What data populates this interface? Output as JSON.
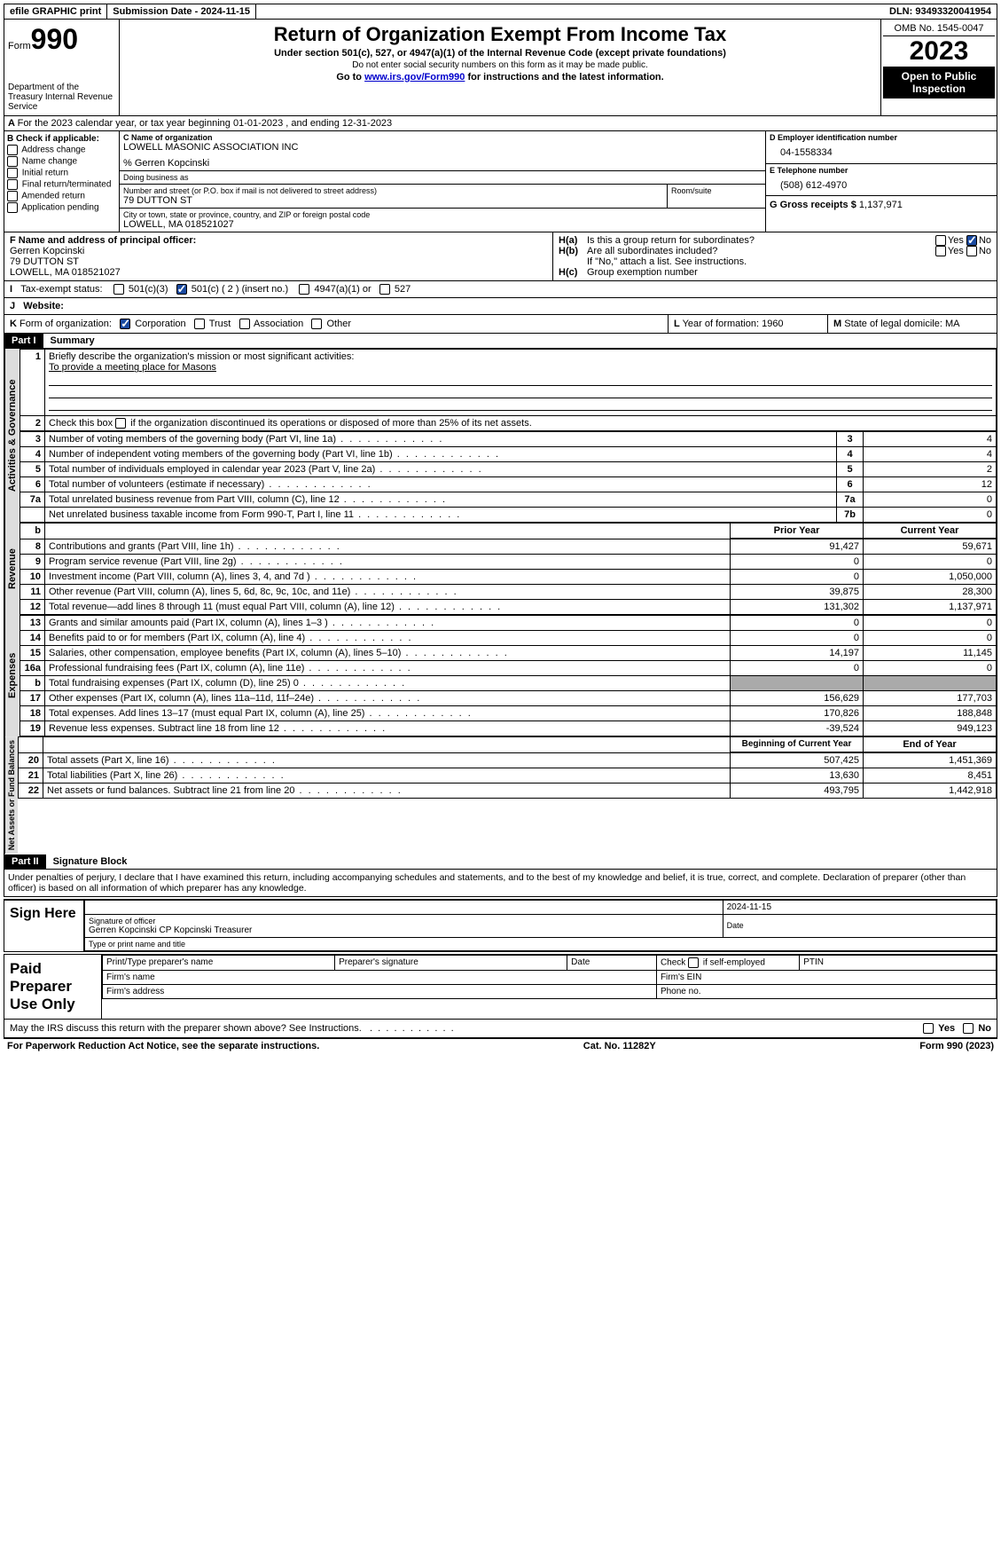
{
  "topbar": {
    "efile": "efile GRAPHIC print",
    "submission": "Submission Date - 2024-11-15",
    "dln": "DLN: 93493320041954"
  },
  "header": {
    "form_word": "Form",
    "form_num": "990",
    "dept": "Department of the Treasury\nInternal Revenue Service",
    "title": "Return of Organization Exempt From Income Tax",
    "sub1": "Under section 501(c), 527, or 4947(a)(1) of the Internal Revenue Code (except private foundations)",
    "sub2": "Do not enter social security numbers on this form as it may be made public.",
    "sub3_pre": "Go to ",
    "sub3_link": "www.irs.gov/Form990",
    "sub3_post": " for instructions and the latest information.",
    "omb": "OMB No. 1545-0047",
    "year": "2023",
    "open": "Open to Public Inspection"
  },
  "line_a": "For the 2023 calendar year, or tax year beginning 01-01-2023   , and ending 12-31-2023",
  "box_b": {
    "hdr": "B Check if applicable:",
    "opts": [
      "Address change",
      "Name change",
      "Initial return",
      "Final return/terminated",
      "Amended return",
      "Application pending"
    ]
  },
  "box_c": {
    "name_lbl": "C Name of organization",
    "name": "LOWELL MASONIC ASSOCIATION INC",
    "care_of": "% Gerren Kopcinski",
    "dba_lbl": "Doing business as",
    "dba": "",
    "street_lbl": "Number and street (or P.O. box if mail is not delivered to street address)",
    "street": "79 DUTTON ST",
    "room_lbl": "Room/suite",
    "city_lbl": "City or town, state or province, country, and ZIP or foreign postal code",
    "city": "LOWELL, MA  018521027"
  },
  "box_d": {
    "lbl": "D Employer identification number",
    "val": "04-1558334"
  },
  "box_e": {
    "lbl": "E Telephone number",
    "val": "(508) 612-4970"
  },
  "box_g": {
    "lbl": "G Gross receipts $",
    "val": "1,137,971"
  },
  "box_f": {
    "lbl": "F  Name and address of principal officer:",
    "name": "Gerren Kopcinski",
    "addr1": "79 DUTTON ST",
    "addr2": "LOWELL, MA  018521027"
  },
  "box_h": {
    "a": "Is this a group return for subordinates?",
    "b": "Are all subordinates included?",
    "note": "If \"No,\" attach a list. See instructions.",
    "c": "Group exemption number"
  },
  "box_i": {
    "lbl": "Tax-exempt status:",
    "o1": "501(c)(3)",
    "o2": "501(c) ( 2 ) (insert no.)",
    "o3": "4947(a)(1) or",
    "o4": "527"
  },
  "box_j": {
    "lbl": "Website:",
    "val": ""
  },
  "box_k": {
    "lbl": "Form of organization:",
    "o1": "Corporation",
    "o2": "Trust",
    "o3": "Association",
    "o4": "Other"
  },
  "box_l": {
    "lbl": "Year of formation:",
    "val": "1960"
  },
  "box_m": {
    "lbl": "State of legal domicile:",
    "val": "MA"
  },
  "part1": {
    "hdr": "Part I",
    "title": "Summary"
  },
  "summary": {
    "l1": "Briefly describe the organization's mission or most significant activities:",
    "l1_val": "To provide a meeting place for Masons",
    "l2": "Check this box        if the organization discontinued its operations or disposed of more than 25% of its net assets.",
    "rows_ag": [
      {
        "n": "3",
        "t": "Number of voting members of the governing body (Part VI, line 1a)",
        "box": "3",
        "v": "4"
      },
      {
        "n": "4",
        "t": "Number of independent voting members of the governing body (Part VI, line 1b)",
        "box": "4",
        "v": "4"
      },
      {
        "n": "5",
        "t": "Total number of individuals employed in calendar year 2023 (Part V, line 2a)",
        "box": "5",
        "v": "2"
      },
      {
        "n": "6",
        "t": "Total number of volunteers (estimate if necessary)",
        "box": "6",
        "v": "12"
      },
      {
        "n": "7a",
        "t": "Total unrelated business revenue from Part VIII, column (C), line 12",
        "box": "7a",
        "v": "0"
      },
      {
        "n": "",
        "t": "Net unrelated business taxable income from Form 990-T, Part I, line 11",
        "box": "7b",
        "v": "0"
      }
    ],
    "hdr_prior": "Prior Year",
    "hdr_curr": "Current Year",
    "rows_rev": [
      {
        "n": "8",
        "t": "Contributions and grants (Part VIII, line 1h)",
        "p": "91,427",
        "c": "59,671"
      },
      {
        "n": "9",
        "t": "Program service revenue (Part VIII, line 2g)",
        "p": "0",
        "c": "0"
      },
      {
        "n": "10",
        "t": "Investment income (Part VIII, column (A), lines 3, 4, and 7d )",
        "p": "0",
        "c": "1,050,000"
      },
      {
        "n": "11",
        "t": "Other revenue (Part VIII, column (A), lines 5, 6d, 8c, 9c, 10c, and 11e)",
        "p": "39,875",
        "c": "28,300"
      },
      {
        "n": "12",
        "t": "Total revenue—add lines 8 through 11 (must equal Part VIII, column (A), line 12)",
        "p": "131,302",
        "c": "1,137,971"
      }
    ],
    "rows_exp": [
      {
        "n": "13",
        "t": "Grants and similar amounts paid (Part IX, column (A), lines 1–3 )",
        "p": "0",
        "c": "0"
      },
      {
        "n": "14",
        "t": "Benefits paid to or for members (Part IX, column (A), line 4)",
        "p": "0",
        "c": "0"
      },
      {
        "n": "15",
        "t": "Salaries, other compensation, employee benefits (Part IX, column (A), lines 5–10)",
        "p": "14,197",
        "c": "11,145"
      },
      {
        "n": "16a",
        "t": "Professional fundraising fees (Part IX, column (A), line 11e)",
        "p": "0",
        "c": "0"
      },
      {
        "n": "b",
        "t": "Total fundraising expenses (Part IX, column (D), line 25) 0",
        "p": "shade",
        "c": "shade"
      },
      {
        "n": "17",
        "t": "Other expenses (Part IX, column (A), lines 11a–11d, 11f–24e)",
        "p": "156,629",
        "c": "177,703"
      },
      {
        "n": "18",
        "t": "Total expenses. Add lines 13–17 (must equal Part IX, column (A), line 25)",
        "p": "170,826",
        "c": "188,848"
      },
      {
        "n": "19",
        "t": "Revenue less expenses. Subtract line 18 from line 12",
        "p": "-39,524",
        "c": "949,123"
      }
    ],
    "hdr_begin": "Beginning of Current Year",
    "hdr_end": "End of Year",
    "rows_net": [
      {
        "n": "20",
        "t": "Total assets (Part X, line 16)",
        "p": "507,425",
        "c": "1,451,369"
      },
      {
        "n": "21",
        "t": "Total liabilities (Part X, line 26)",
        "p": "13,630",
        "c": "8,451"
      },
      {
        "n": "22",
        "t": "Net assets or fund balances. Subtract line 21 from line 20",
        "p": "493,795",
        "c": "1,442,918"
      }
    ]
  },
  "part2": {
    "hdr": "Part II",
    "title": "Signature Block"
  },
  "penalty": "Under penalties of perjury, I declare that I have examined this return, including accompanying schedules and statements, and to the best of my knowledge and belief, it is true, correct, and complete. Declaration of preparer (other than officer) is based on all information of which preparer has any knowledge.",
  "sign": {
    "here": "Sign Here",
    "sig_lbl": "Signature of officer",
    "name": "Gerren Kopcinski CP Kopcinski  Treasurer",
    "type_lbl": "Type or print name and title",
    "date_lbl": "Date",
    "date": "2024-11-15"
  },
  "preparer": {
    "hdr": "Paid Preparer Use Only",
    "c1": "Print/Type preparer's name",
    "c2": "Preparer's signature",
    "c3": "Date",
    "c4_pre": "Check",
    "c4_post": "if self-employed",
    "c5": "PTIN",
    "firm_name": "Firm's name",
    "firm_ein": "Firm's EIN",
    "firm_addr": "Firm's address",
    "phone": "Phone no."
  },
  "footer": {
    "discuss": "May the IRS discuss this return with the preparer shown above? See Instructions.",
    "paperwork": "For Paperwork Reduction Act Notice, see the separate instructions.",
    "cat": "Cat. No. 11282Y",
    "form": "Form 990 (2023)"
  },
  "vert": {
    "ag": "Activities & Governance",
    "rev": "Revenue",
    "exp": "Expenses",
    "net": "Net Assets or Fund Balances"
  },
  "yesno": {
    "yes": "Yes",
    "no": "No"
  }
}
